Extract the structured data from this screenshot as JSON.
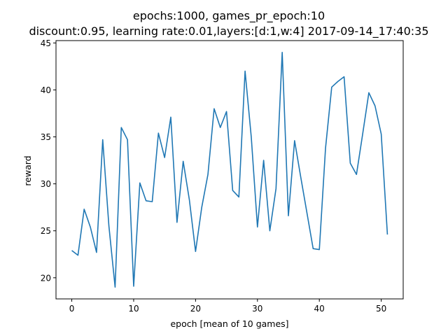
{
  "chart_data": {
    "type": "line",
    "title_line1": "epochs:1000, games_pr_epoch:10",
    "title_line2": "discount:0.95, learning rate:0.01,layers:[d:1,w:4] 2017-09-14_17:40:35",
    "xlabel": "epoch [mean of 10 games]",
    "ylabel": "reward",
    "xlim": [
      -2.55,
      53.55
    ],
    "ylim": [
      17.75,
      45.25
    ],
    "xticks": [
      0,
      10,
      20,
      30,
      40,
      50
    ],
    "yticks": [
      20,
      25,
      30,
      35,
      40,
      45
    ],
    "grid": false,
    "line_color": "#1f77b4",
    "series": [
      {
        "x": [
          0,
          1,
          2,
          3,
          4,
          5,
          6,
          7,
          8,
          9,
          10,
          11,
          12,
          13,
          14,
          15,
          16,
          17,
          18,
          19,
          20,
          21,
          22,
          23,
          24,
          25,
          26,
          27,
          28,
          29,
          30,
          31,
          32,
          33,
          34,
          35,
          36,
          37,
          38,
          39,
          40,
          41,
          42,
          43,
          44,
          45,
          46,
          47,
          48,
          49,
          50,
          51
        ],
        "values": [
          22.9,
          22.4,
          27.3,
          25.4,
          22.7,
          34.7,
          25.5,
          19.0,
          36.0,
          34.7,
          19.1,
          30.1,
          28.2,
          28.1,
          35.4,
          32.8,
          37.1,
          25.9,
          32.4,
          28.3,
          22.8,
          27.5,
          31.0,
          38.0,
          36.0,
          37.7,
          29.3,
          28.6,
          42.0,
          35.0,
          25.4,
          32.5,
          25.0,
          29.5,
          44.0,
          26.6,
          34.6,
          30.7,
          26.9,
          23.1,
          23.0,
          33.8,
          40.3,
          40.9,
          41.4,
          32.2,
          31.0,
          35.3,
          39.7,
          38.3,
          35.3,
          24.6
        ]
      }
    ]
  }
}
